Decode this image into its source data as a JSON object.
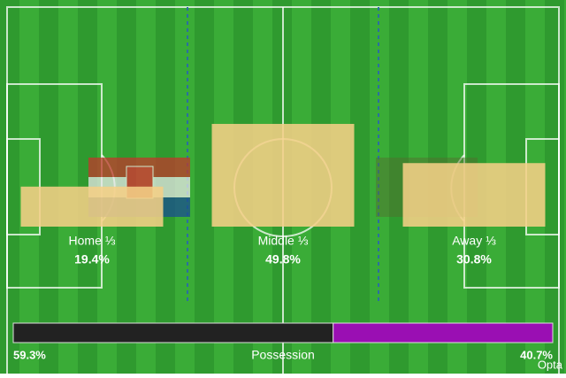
{
  "chart_data": [
    {
      "type": "territory",
      "categories": [
        "Home ⅓",
        "Middle ⅓",
        "Away ⅓"
      ],
      "values": [
        19.4,
        49.8,
        30.8
      ],
      "value_labels": [
        "19.4%",
        "49.8%",
        "30.8%"
      ],
      "color": "#f4cf86"
    },
    {
      "type": "possession",
      "title": "Possession",
      "values": [
        59.3,
        40.7
      ],
      "value_labels": [
        "59.3%",
        "40.7%"
      ],
      "colors": [
        "#222222",
        "#9a0fb3"
      ]
    }
  ],
  "watermark": "Opta"
}
